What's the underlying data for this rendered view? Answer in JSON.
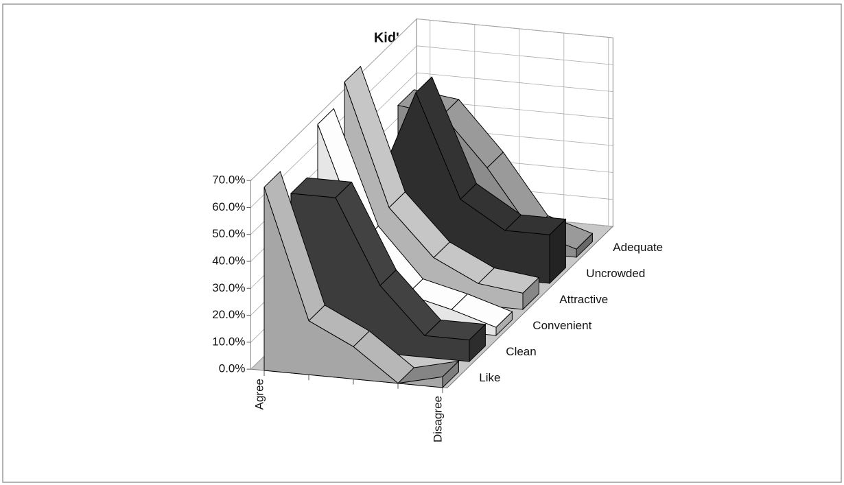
{
  "chart_data": {
    "type": "area3d",
    "title": "Kid's Kingdom",
    "categories": [
      "Agree",
      null,
      null,
      null,
      "Disagree"
    ],
    "series": [
      {
        "name": "Like",
        "color": "#a6a6a6",
        "values": [
          68,
          20,
          12,
          0,
          4
        ]
      },
      {
        "name": "Clean",
        "color": "#3c3c3c",
        "values": [
          56,
          56,
          25,
          8,
          8
        ]
      },
      {
        "name": "Convenient",
        "color": "#e6e6e6",
        "values": [
          72,
          30,
          12,
          8,
          3
        ]
      },
      {
        "name": "Attractive",
        "color": "#b4b4b4",
        "values": [
          78,
          33,
          16,
          8,
          6
        ]
      },
      {
        "name": "Uncrowded",
        "color": "#2e2e2e",
        "values": [
          25,
          66,
          28,
          18,
          18
        ]
      },
      {
        "name": "Adequate",
        "color": "#8c8c8c",
        "values": [
          50,
          48,
          30,
          8,
          3
        ]
      }
    ],
    "ylim": [
      0,
      70
    ],
    "yticks": [
      {
        "value": 0,
        "label": "0.0%"
      },
      {
        "value": 10,
        "label": "10.0%"
      },
      {
        "value": 20,
        "label": "20.0%"
      },
      {
        "value": 30,
        "label": "30.0%"
      },
      {
        "value": 40,
        "label": "40.0%"
      },
      {
        "value": 50,
        "label": "50.0%"
      },
      {
        "value": 60,
        "label": "60.0%"
      },
      {
        "value": 70,
        "label": "70.0%"
      }
    ],
    "grid": true
  }
}
